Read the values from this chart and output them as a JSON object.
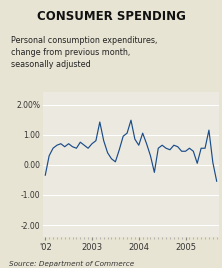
{
  "title": "CONSUMER SPENDING",
  "subtitle": "Personal consumption expenditures,\nchange from previous month,\nseasonally adjusted",
  "source": "Source: Department of Commerce",
  "background_color": "#e8e4d4",
  "title_background": "#ddd9c8",
  "plot_background": "#eceae0",
  "line_color": "#1a4c8a",
  "ylim": [
    -2.4,
    2.4
  ],
  "yticks": [
    -2.0,
    -1.0,
    0.0,
    1.0,
    2.0
  ],
  "ytick_labels": [
    "-2.00",
    "-1.00",
    "0.00",
    "1.00",
    "2.00%"
  ],
  "x_tick_positions": [
    0,
    12,
    24,
    36
  ],
  "x_labels": [
    "'02",
    "2003",
    "2004",
    "2005"
  ],
  "values": [
    -0.35,
    0.3,
    0.55,
    0.65,
    0.7,
    0.6,
    0.7,
    0.6,
    0.55,
    0.75,
    0.65,
    0.55,
    0.7,
    0.8,
    1.42,
    0.8,
    0.4,
    0.2,
    0.1,
    0.5,
    0.95,
    1.05,
    1.48,
    0.85,
    0.65,
    1.05,
    0.7,
    0.3,
    -0.25,
    0.55,
    0.65,
    0.55,
    0.5,
    0.65,
    0.6,
    0.45,
    0.45,
    0.55,
    0.45,
    0.05,
    0.55,
    0.55,
    1.15,
    0.08,
    -0.55
  ]
}
